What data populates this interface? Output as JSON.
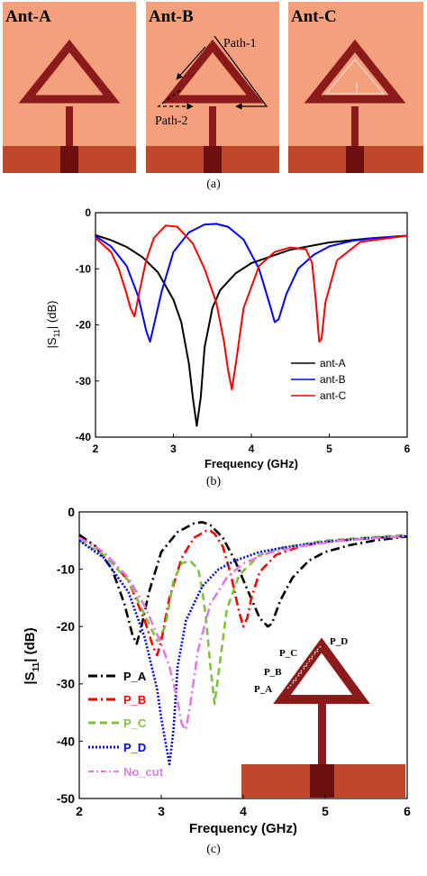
{
  "panel_a": {
    "caption": "(a)",
    "antennas": [
      {
        "label": "Ant-A"
      },
      {
        "label": "Ant-B",
        "annotations": [
          "Path-1",
          "Path-2"
        ]
      },
      {
        "label": "Ant-C"
      }
    ],
    "colors": {
      "substrate": "#f4a07c",
      "metal": "#8b1a1a",
      "ground": "#c0482a",
      "feed": "#6e0f0f"
    }
  },
  "chart_data": [
    {
      "type": "line",
      "caption": "(b)",
      "xlabel": "Frequency (GHz)",
      "ylabel": "|S11| (dB)",
      "ylabel_main": "|S",
      "ylabel_sub": "11",
      "ylabel_tail": "| (dB)",
      "xlim": [
        2,
        6
      ],
      "ylim": [
        -40,
        0
      ],
      "xticks": [
        "2",
        "3",
        "4",
        "5",
        "6"
      ],
      "yticks": [
        "0",
        "-10",
        "-20",
        "-30",
        "-40"
      ],
      "legend_position": "bottom-right",
      "series": [
        {
          "name": "ant-A",
          "color": "#000000",
          "style": "solid",
          "x": [
            2.0,
            2.2,
            2.4,
            2.6,
            2.8,
            3.0,
            3.1,
            3.2,
            3.25,
            3.3,
            3.35,
            3.4,
            3.5,
            3.6,
            3.8,
            4.0,
            4.5,
            5.0,
            5.5,
            6.0
          ],
          "y": [
            -4.0,
            -4.9,
            -6.1,
            -7.9,
            -10.6,
            -15.5,
            -19.5,
            -27.0,
            -33.0,
            -38.0,
            -33.0,
            -24.0,
            -17.0,
            -13.8,
            -10.8,
            -9.0,
            -6.6,
            -5.3,
            -4.6,
            -4.1
          ]
        },
        {
          "name": "ant-B",
          "color": "#0000ff",
          "style": "solid",
          "x": [
            2.0,
            2.2,
            2.4,
            2.55,
            2.65,
            2.7,
            2.75,
            2.85,
            3.0,
            3.2,
            3.4,
            3.55,
            3.7,
            3.9,
            4.1,
            4.25,
            4.3,
            4.35,
            4.45,
            4.6,
            4.8,
            5.0,
            5.3,
            5.6,
            6.0
          ],
          "y": [
            -4.2,
            -6.0,
            -9.5,
            -15.0,
            -21.0,
            -23.0,
            -20.0,
            -14.0,
            -7.0,
            -3.5,
            -2.1,
            -2.0,
            -2.5,
            -4.8,
            -10.0,
            -17.0,
            -19.5,
            -19.0,
            -14.5,
            -10.0,
            -7.5,
            -6.0,
            -5.0,
            -4.5,
            -4.1
          ]
        },
        {
          "name": "ant-C",
          "color": "#ff0000",
          "style": "solid",
          "x": [
            2.0,
            2.2,
            2.3,
            2.4,
            2.45,
            2.5,
            2.55,
            2.65,
            2.75,
            2.9,
            3.05,
            3.25,
            3.4,
            3.55,
            3.65,
            3.7,
            3.75,
            3.8,
            3.9,
            4.1,
            4.3,
            4.5,
            4.7,
            4.78,
            4.83,
            4.87,
            4.9,
            4.95,
            5.1,
            5.4,
            6.0
          ],
          "y": [
            -4.5,
            -7.0,
            -10.0,
            -14.5,
            -17.0,
            -18.5,
            -15.0,
            -8.5,
            -4.5,
            -2.3,
            -2.5,
            -5.5,
            -10.0,
            -16.0,
            -23.0,
            -28.0,
            -31.5,
            -27.0,
            -17.0,
            -9.5,
            -7.0,
            -6.2,
            -6.5,
            -9.0,
            -16.0,
            -23.0,
            -22.5,
            -16.0,
            -8.5,
            -5.2,
            -4.1
          ]
        }
      ]
    },
    {
      "type": "line",
      "caption": "(c)",
      "xlabel": "Frequency (GHz)",
      "ylabel": "|S11| (dB)",
      "ylabel_main": "|S",
      "ylabel_sub": "11",
      "ylabel_tail": "| (dB)",
      "xlim": [
        2,
        6
      ],
      "ylim": [
        -50,
        0
      ],
      "xticks": [
        "2",
        "3",
        "4",
        "5",
        "6"
      ],
      "yticks": [
        "0",
        "-10",
        "-20",
        "-30",
        "-40",
        "-50"
      ],
      "legend_position": "bottom-left",
      "inset_labels": [
        "P_C",
        "P_D",
        "P_B",
        "P_A"
      ],
      "series": [
        {
          "name": "P_A",
          "color": "#000000",
          "style": "dashdot",
          "x": [
            2.0,
            2.2,
            2.4,
            2.55,
            2.65,
            2.7,
            2.75,
            2.85,
            3.0,
            3.2,
            3.4,
            3.5,
            3.6,
            3.75,
            3.9,
            4.05,
            4.2,
            4.3,
            4.35,
            4.45,
            4.6,
            4.8,
            5.0,
            5.3,
            5.6,
            6.0
          ],
          "y": [
            -4.0,
            -6.0,
            -10.0,
            -16.0,
            -21.5,
            -23.0,
            -20.5,
            -14.0,
            -7.0,
            -3.5,
            -2.0,
            -1.8,
            -2.3,
            -4.5,
            -8.5,
            -13.5,
            -18.5,
            -20.0,
            -19.5,
            -15.5,
            -11.5,
            -8.5,
            -7.0,
            -5.8,
            -5.0,
            -4.3
          ]
        },
        {
          "name": "P_B",
          "color": "#ff0000",
          "style": "dashdot",
          "x": [
            2.0,
            2.3,
            2.6,
            2.8,
            2.9,
            2.95,
            3.0,
            3.1,
            3.25,
            3.4,
            3.55,
            3.6,
            3.65,
            3.75,
            3.85,
            3.95,
            4.0,
            4.05,
            4.1,
            4.2,
            4.4,
            4.7,
            5.0,
            5.5,
            6.0
          ],
          "y": [
            -4.5,
            -7.0,
            -12.0,
            -19.0,
            -23.5,
            -25.0,
            -22.5,
            -15.0,
            -8.0,
            -4.5,
            -3.3,
            -3.3,
            -3.8,
            -6.0,
            -11.0,
            -17.5,
            -20.0,
            -18.5,
            -15.0,
            -10.5,
            -7.5,
            -6.0,
            -5.2,
            -4.6,
            -4.2
          ]
        },
        {
          "name": "P_C",
          "color": "#80c040",
          "style": "dash",
          "x": [
            2.0,
            2.3,
            2.6,
            2.8,
            2.95,
            3.05,
            3.1,
            3.15,
            3.25,
            3.35,
            3.45,
            3.5,
            3.55,
            3.6,
            3.65,
            3.7,
            3.8,
            3.95,
            4.2,
            4.5,
            5.0,
            5.5,
            6.0
          ],
          "y": [
            -5.0,
            -7.5,
            -12.0,
            -18.0,
            -22.5,
            -20.0,
            -16.0,
            -12.0,
            -9.0,
            -8.5,
            -10.0,
            -13.5,
            -19.0,
            -27.0,
            -33.5,
            -28.0,
            -17.0,
            -11.0,
            -7.5,
            -6.2,
            -5.0,
            -4.5,
            -4.0
          ]
        },
        {
          "name": "P_D",
          "color": "#0000ff",
          "style": "dot",
          "x": [
            2.0,
            2.3,
            2.6,
            2.8,
            2.95,
            3.0,
            3.05,
            3.1,
            3.15,
            3.2,
            3.3,
            3.5,
            3.7,
            3.9,
            4.2,
            4.5,
            5.0,
            5.5,
            6.0
          ],
          "y": [
            -5.0,
            -8.0,
            -14.0,
            -22.0,
            -31.0,
            -36.0,
            -40.0,
            -44.0,
            -38.0,
            -27.0,
            -19.0,
            -13.0,
            -10.0,
            -8.5,
            -7.0,
            -6.2,
            -5.2,
            -4.6,
            -4.2
          ]
        },
        {
          "name": "No_cut",
          "color": "#e07be0",
          "style": "dashdot",
          "x": [
            2.0,
            2.3,
            2.6,
            2.8,
            3.0,
            3.1,
            3.2,
            3.25,
            3.3,
            3.35,
            3.45,
            3.6,
            3.8,
            4.0,
            4.3,
            4.7,
            5.2,
            6.0
          ],
          "y": [
            -4.5,
            -7.0,
            -11.5,
            -16.5,
            -23.0,
            -27.0,
            -33.0,
            -37.0,
            -38.0,
            -34.0,
            -24.0,
            -16.0,
            -11.5,
            -9.0,
            -7.2,
            -6.0,
            -5.0,
            -4.2
          ]
        }
      ]
    }
  ]
}
